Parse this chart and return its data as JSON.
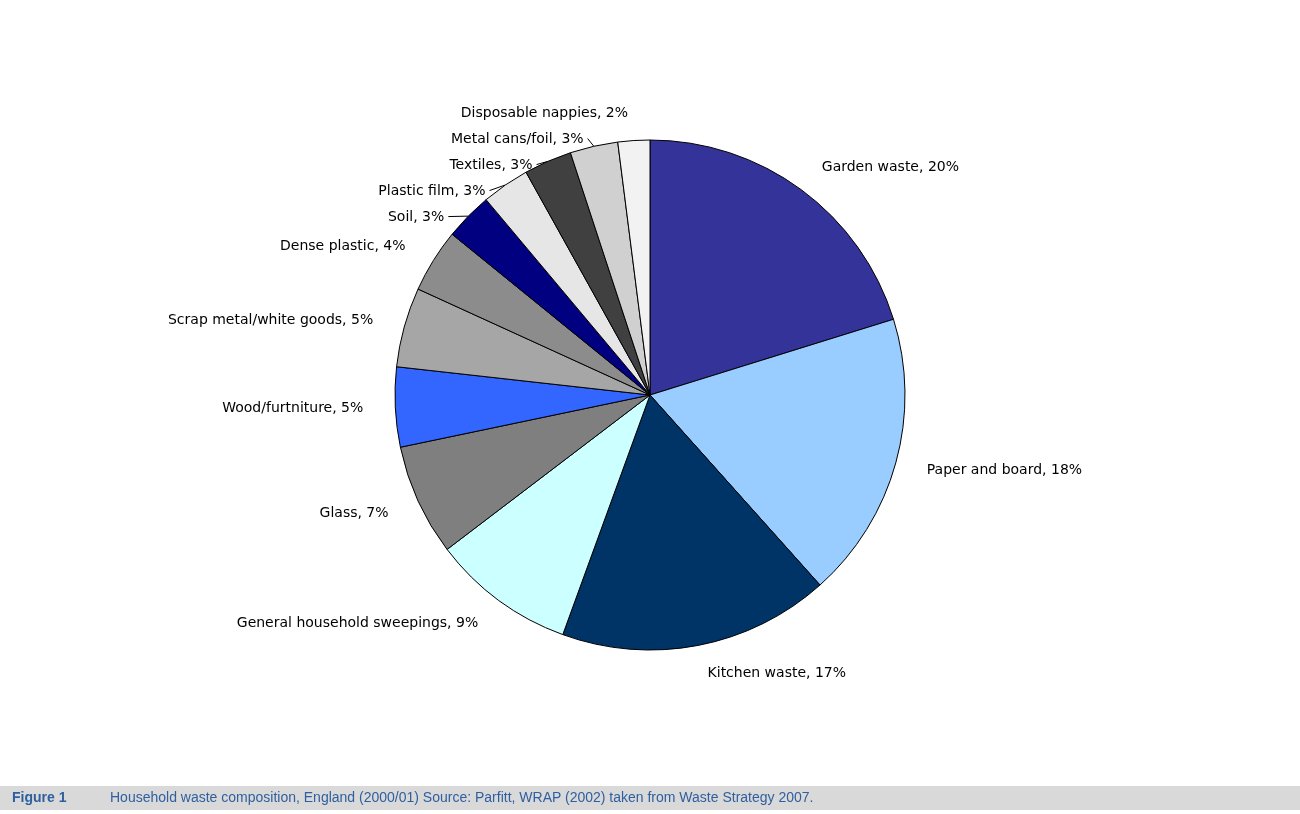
{
  "chart_data": {
    "type": "pie",
    "title": "Figure 1",
    "annotations": [
      "Household waste composition, England (2000/01) Source: Parfitt, WRAP (2002) taken from Waste Strategy 2007."
    ],
    "categories": [
      "Garden waste",
      "Paper and board",
      "Kitchen waste",
      "General household sweepings",
      "Glass",
      "Wood/furtniture",
      "Scrap metal/white goods",
      "Dense plastic",
      "Soil",
      "Plastic film",
      "Textiles",
      "Metal cans/foil",
      "Disposable nappies"
    ],
    "values": [
      20,
      18,
      17,
      9,
      7,
      5,
      5,
      4,
      3,
      3,
      3,
      3,
      2
    ],
    "value_labels": [
      "20%",
      "18%",
      "17%",
      "9%",
      "7%",
      "5%",
      "5%",
      "4%",
      "3%",
      "3%",
      "3%",
      "3%",
      "2%"
    ],
    "colors": [
      "#333399",
      "#99ccff",
      "#003366",
      "#ccffff",
      "#7f7f7f",
      "#3366ff",
      "#a6a6a6",
      "#8c8c8c",
      "#000080",
      "#e6e6e6",
      "#404040",
      "#d0d0d0",
      "#f2f2f2"
    ]
  }
}
